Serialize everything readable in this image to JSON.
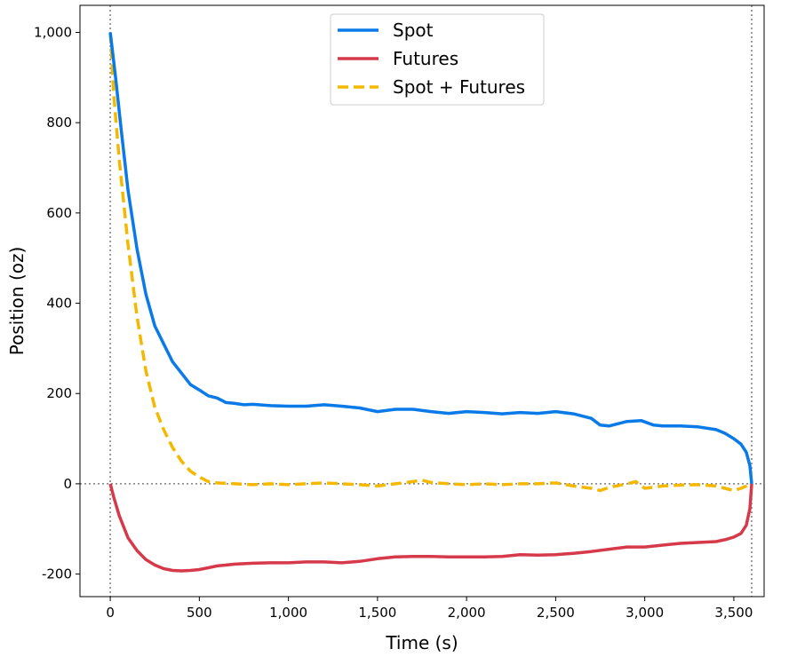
{
  "chart_data": {
    "type": "line",
    "xlabel": "Time (s)",
    "ylabel": "Position (oz)",
    "xlim": [
      -170,
      3670
    ],
    "ylim": [
      -250,
      1060
    ],
    "xticks": [
      {
        "value": 0,
        "label": "0"
      },
      {
        "value": 500,
        "label": "500"
      },
      {
        "value": 1000,
        "label": "1,000"
      },
      {
        "value": 1500,
        "label": "1,500"
      },
      {
        "value": 2000,
        "label": "2,000"
      },
      {
        "value": 2500,
        "label": "2,500"
      },
      {
        "value": 3000,
        "label": "3,000"
      },
      {
        "value": 3500,
        "label": "3,500"
      }
    ],
    "yticks": [
      {
        "value": -200,
        "label": "-200"
      },
      {
        "value": 0,
        "label": "0"
      },
      {
        "value": 200,
        "label": "200"
      },
      {
        "value": 400,
        "label": "400"
      },
      {
        "value": 600,
        "label": "600"
      },
      {
        "value": 800,
        "label": "800"
      },
      {
        "value": 1000,
        "label": "1,000"
      }
    ],
    "reference_lines": {
      "vertical": [
        0,
        3600
      ],
      "horizontal": [
        0
      ],
      "style": "dotted",
      "color": "#7f7f7f"
    },
    "grid": false,
    "legend_position": "top-center",
    "series": [
      {
        "name": "Spot",
        "color": "#0a7ae8",
        "dash": "solid",
        "x": [
          0,
          30,
          60,
          100,
          150,
          200,
          250,
          300,
          350,
          400,
          450,
          500,
          550,
          600,
          650,
          700,
          750,
          800,
          900,
          1000,
          1100,
          1200,
          1300,
          1400,
          1500,
          1600,
          1700,
          1800,
          1900,
          2000,
          2100,
          2200,
          2300,
          2400,
          2500,
          2600,
          2700,
          2750,
          2800,
          2900,
          2980,
          3050,
          3100,
          3200,
          3300,
          3400,
          3450,
          3500,
          3540,
          3570,
          3590,
          3600
        ],
        "y": [
          1000,
          900,
          790,
          650,
          520,
          420,
          350,
          310,
          270,
          245,
          220,
          208,
          195,
          190,
          180,
          178,
          175,
          176,
          173,
          172,
          172,
          175,
          172,
          168,
          160,
          165,
          165,
          160,
          156,
          160,
          158,
          155,
          158,
          156,
          160,
          155,
          145,
          130,
          128,
          138,
          140,
          130,
          128,
          128,
          126,
          120,
          112,
          100,
          88,
          70,
          40,
          0
        ]
      },
      {
        "name": "Futures",
        "color": "#d63a4a",
        "dash": "solid",
        "x": [
          0,
          20,
          50,
          100,
          150,
          200,
          250,
          300,
          350,
          400,
          450,
          500,
          550,
          600,
          700,
          800,
          900,
          1000,
          1100,
          1200,
          1300,
          1400,
          1500,
          1600,
          1700,
          1800,
          1900,
          2000,
          2100,
          2200,
          2300,
          2400,
          2500,
          2600,
          2700,
          2800,
          2900,
          3000,
          3100,
          3200,
          3300,
          3400,
          3450,
          3500,
          3540,
          3570,
          3590,
          3600
        ],
        "y": [
          0,
          -30,
          -70,
          -120,
          -148,
          -168,
          -180,
          -188,
          -192,
          -193,
          -192,
          -190,
          -186,
          -182,
          -178,
          -176,
          -175,
          -175,
          -173,
          -173,
          -175,
          -172,
          -166,
          -162,
          -161,
          -161,
          -162,
          -162,
          -162,
          -161,
          -157,
          -158,
          -157,
          -154,
          -150,
          -145,
          -140,
          -140,
          -136,
          -132,
          -130,
          -128,
          -124,
          -118,
          -110,
          -92,
          -55,
          0
        ]
      },
      {
        "name": "Spot + Futures",
        "color": "#f5b800",
        "dash": "dashed",
        "x": [
          0,
          20,
          50,
          100,
          150,
          200,
          250,
          300,
          350,
          400,
          450,
          500,
          550,
          600,
          700,
          800,
          900,
          1000,
          1100,
          1200,
          1300,
          1400,
          1500,
          1600,
          1700,
          1750,
          1800,
          1900,
          2000,
          2100,
          2200,
          2300,
          2400,
          2500,
          2600,
          2700,
          2750,
          2800,
          2900,
          2950,
          3000,
          3100,
          3200,
          3300,
          3400,
          3450,
          3500,
          3540,
          3570,
          3600
        ],
        "y": [
          1000,
          860,
          720,
          530,
          370,
          250,
          170,
          120,
          80,
          50,
          28,
          15,
          5,
          2,
          0,
          -2,
          0,
          -2,
          0,
          2,
          0,
          -2,
          -5,
          0,
          5,
          8,
          3,
          0,
          -2,
          0,
          -2,
          0,
          0,
          2,
          -5,
          -10,
          -15,
          -8,
          0,
          5,
          -10,
          -5,
          -3,
          -2,
          -5,
          -10,
          -15,
          -10,
          -5,
          5
        ]
      }
    ]
  }
}
